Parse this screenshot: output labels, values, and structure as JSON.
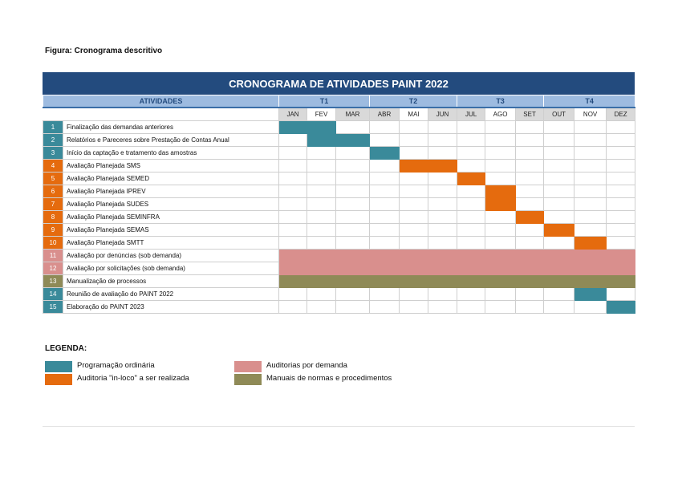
{
  "caption": "Figura: Cronograma descritivo",
  "title": "CRONOGRAMA DE ATIVIDADES PAINT 2022",
  "header": {
    "activities_label": "ATIVIDADES",
    "quarters": [
      "T1",
      "T2",
      "T3",
      "T4"
    ],
    "months": [
      "JAN",
      "FEV",
      "MAR",
      "ABR",
      "MAI",
      "JUN",
      "JUL",
      "AGO",
      "SET",
      "OUT",
      "NOV",
      "DEZ"
    ]
  },
  "colors": {
    "ordinaria": "#3a8a9a",
    "inloco": "#e56b0e",
    "demanda": "#d98f8d",
    "manuais": "#8f8a57"
  },
  "activities": [
    {
      "num": "1",
      "label": "Finalização das demandas anteriores",
      "type": "ordinaria",
      "months": [
        1,
        2
      ]
    },
    {
      "num": "2",
      "label": "Relatórios e Pareceres sobre Prestação de Contas Anual",
      "type": "ordinaria",
      "months": [
        2,
        3
      ]
    },
    {
      "num": "3",
      "label": "Início da captação e tratamento das amostras",
      "type": "ordinaria",
      "months": [
        4
      ]
    },
    {
      "num": "4",
      "label": "Avaliação Planejada SMS",
      "type": "inloco",
      "months": [
        5,
        6
      ]
    },
    {
      "num": "5",
      "label": "Avaliação Planejada SEMED",
      "type": "inloco",
      "months": [
        7
      ]
    },
    {
      "num": "6",
      "label": "Avaliação Planejada IPREV",
      "type": "inloco",
      "months": [
        8
      ]
    },
    {
      "num": "7",
      "label": "Avaliação Planejada SUDES",
      "type": "inloco",
      "months": [
        8
      ]
    },
    {
      "num": "8",
      "label": "Avaliação Planejada SEMINFRA",
      "type": "inloco",
      "months": [
        9
      ]
    },
    {
      "num": "9",
      "label": "Avaliação Planejada SEMAS",
      "type": "inloco",
      "months": [
        10
      ]
    },
    {
      "num": "10",
      "label": "Avaliação Planejada SMTT",
      "type": "inloco",
      "months": [
        11
      ]
    },
    {
      "num": "11",
      "label": "Avaliação por denúncias (sob demanda)",
      "type": "demanda",
      "months": [
        1,
        2,
        3,
        4,
        5,
        6,
        7,
        8,
        9,
        10,
        11,
        12
      ]
    },
    {
      "num": "12",
      "label": "Avaliação por solicitações (sob demanda)",
      "type": "demanda",
      "months": [
        1,
        2,
        3,
        4,
        5,
        6,
        7,
        8,
        9,
        10,
        11,
        12
      ]
    },
    {
      "num": "13",
      "label": "Manualização de processos",
      "type": "manuais",
      "months": [
        1,
        2,
        3,
        4,
        5,
        6,
        7,
        8,
        9,
        10,
        11,
        12
      ]
    },
    {
      "num": "14",
      "label": "Reunião de avaliação do PAINT 2022",
      "type": "ordinaria",
      "months": [
        11
      ]
    },
    {
      "num": "15",
      "label": "Elaboração do PAINT 2023",
      "type": "ordinaria",
      "months": [
        12
      ]
    }
  ],
  "legend": {
    "title": "LEGENDA:",
    "items": [
      {
        "label": "Programação ordinária",
        "type": "ordinaria"
      },
      {
        "label": "Auditoria \"in-loco\" a ser realizada",
        "type": "inloco"
      },
      {
        "label": "Auditorias por demanda",
        "type": "demanda"
      },
      {
        "label": "Manuais de normas e procedimentos",
        "type": "manuais"
      }
    ]
  }
}
